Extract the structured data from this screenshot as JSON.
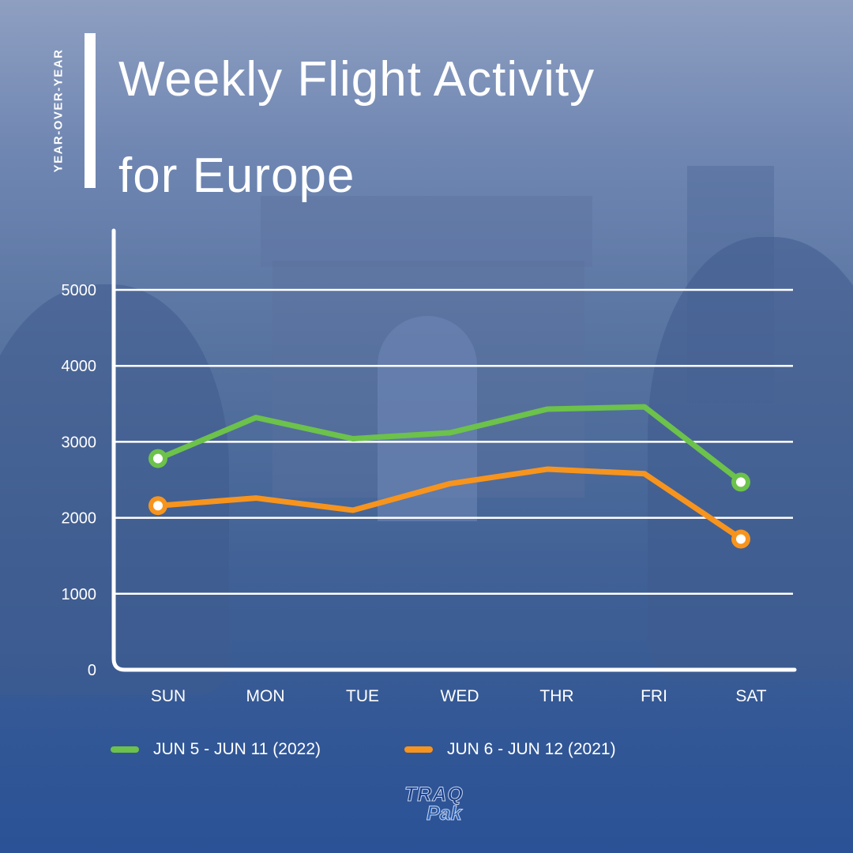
{
  "header": {
    "side_label": "YEAR-OVER-YEAR",
    "title_line1": "Weekly Flight Activity",
    "title_line2": "for Europe"
  },
  "colors": {
    "series_2022": "#6cc24a",
    "series_2021": "#f7941d",
    "gridline": "#ffffff",
    "text": "#ffffff"
  },
  "chart_data": {
    "type": "line",
    "title": "Weekly Flight Activity for Europe",
    "xlabel": "",
    "ylabel": "",
    "categories": [
      "SUN",
      "MON",
      "TUE",
      "WED",
      "THR",
      "FRI",
      "SAT"
    ],
    "y_ticks": [
      0,
      1000,
      2000,
      3000,
      4000,
      5000
    ],
    "ylim": [
      0,
      5800
    ],
    "grid": true,
    "legend_position": "bottom",
    "series": [
      {
        "name": "JUN 5 - JUN 11 (2022)",
        "color": "#6cc24a",
        "values": [
          2780,
          3320,
          3040,
          3120,
          3430,
          3460,
          2470
        ],
        "end_markers": true
      },
      {
        "name": "JUN 6 - JUN 12 (2021)",
        "color": "#f7941d",
        "values": [
          2160,
          2260,
          2100,
          2450,
          2640,
          2580,
          1720
        ],
        "end_markers": true
      }
    ]
  },
  "logo": {
    "line1": "TRAQ",
    "line2": "Pak"
  }
}
